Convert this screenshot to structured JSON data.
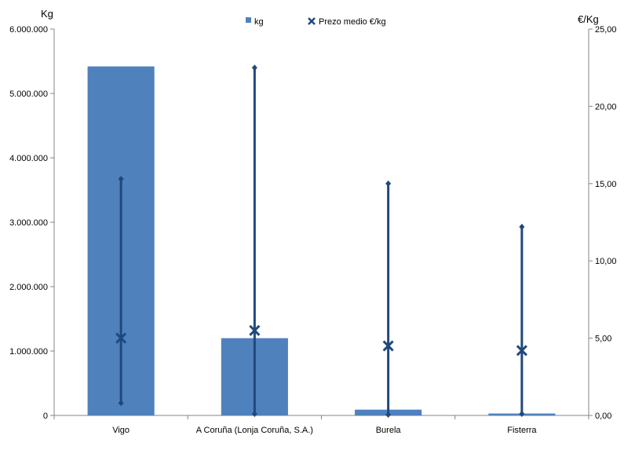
{
  "chart_data": {
    "type": "bar",
    "categories": [
      "Vigo",
      "A Coruña (Lonja Coruña, S.A.)",
      "Burela",
      "Fisterra"
    ],
    "series": [
      {
        "name": "kg",
        "type": "bar",
        "axis": "left",
        "color": "#4F81BD",
        "values": [
          5420000,
          1200000,
          90000,
          30000
        ]
      },
      {
        "name": "Prezo medio €/kg",
        "type": "marker-x",
        "axis": "right",
        "color": "#1F497D",
        "values": [
          5.0,
          5.5,
          4.5,
          4.2
        ],
        "high": [
          15.3,
          22.5,
          15.0,
          12.2
        ],
        "low": [
          0.8,
          0.1,
          0.05,
          0.1
        ]
      }
    ],
    "ylabel_left": "Kg",
    "ylabel_right": "€/Kg",
    "ylim_left": [
      0,
      6000000
    ],
    "ylim_right": [
      0,
      25
    ],
    "yticks_left": [
      "0",
      "1.000.000",
      "2.000.000",
      "3.000.000",
      "4.000.000",
      "5.000.000",
      "6.000.000"
    ],
    "yticks_right": [
      "0,00",
      "5,00",
      "10,00",
      "15,00",
      "20,00",
      "25,00"
    ],
    "legend_position": "top",
    "grid": false
  }
}
